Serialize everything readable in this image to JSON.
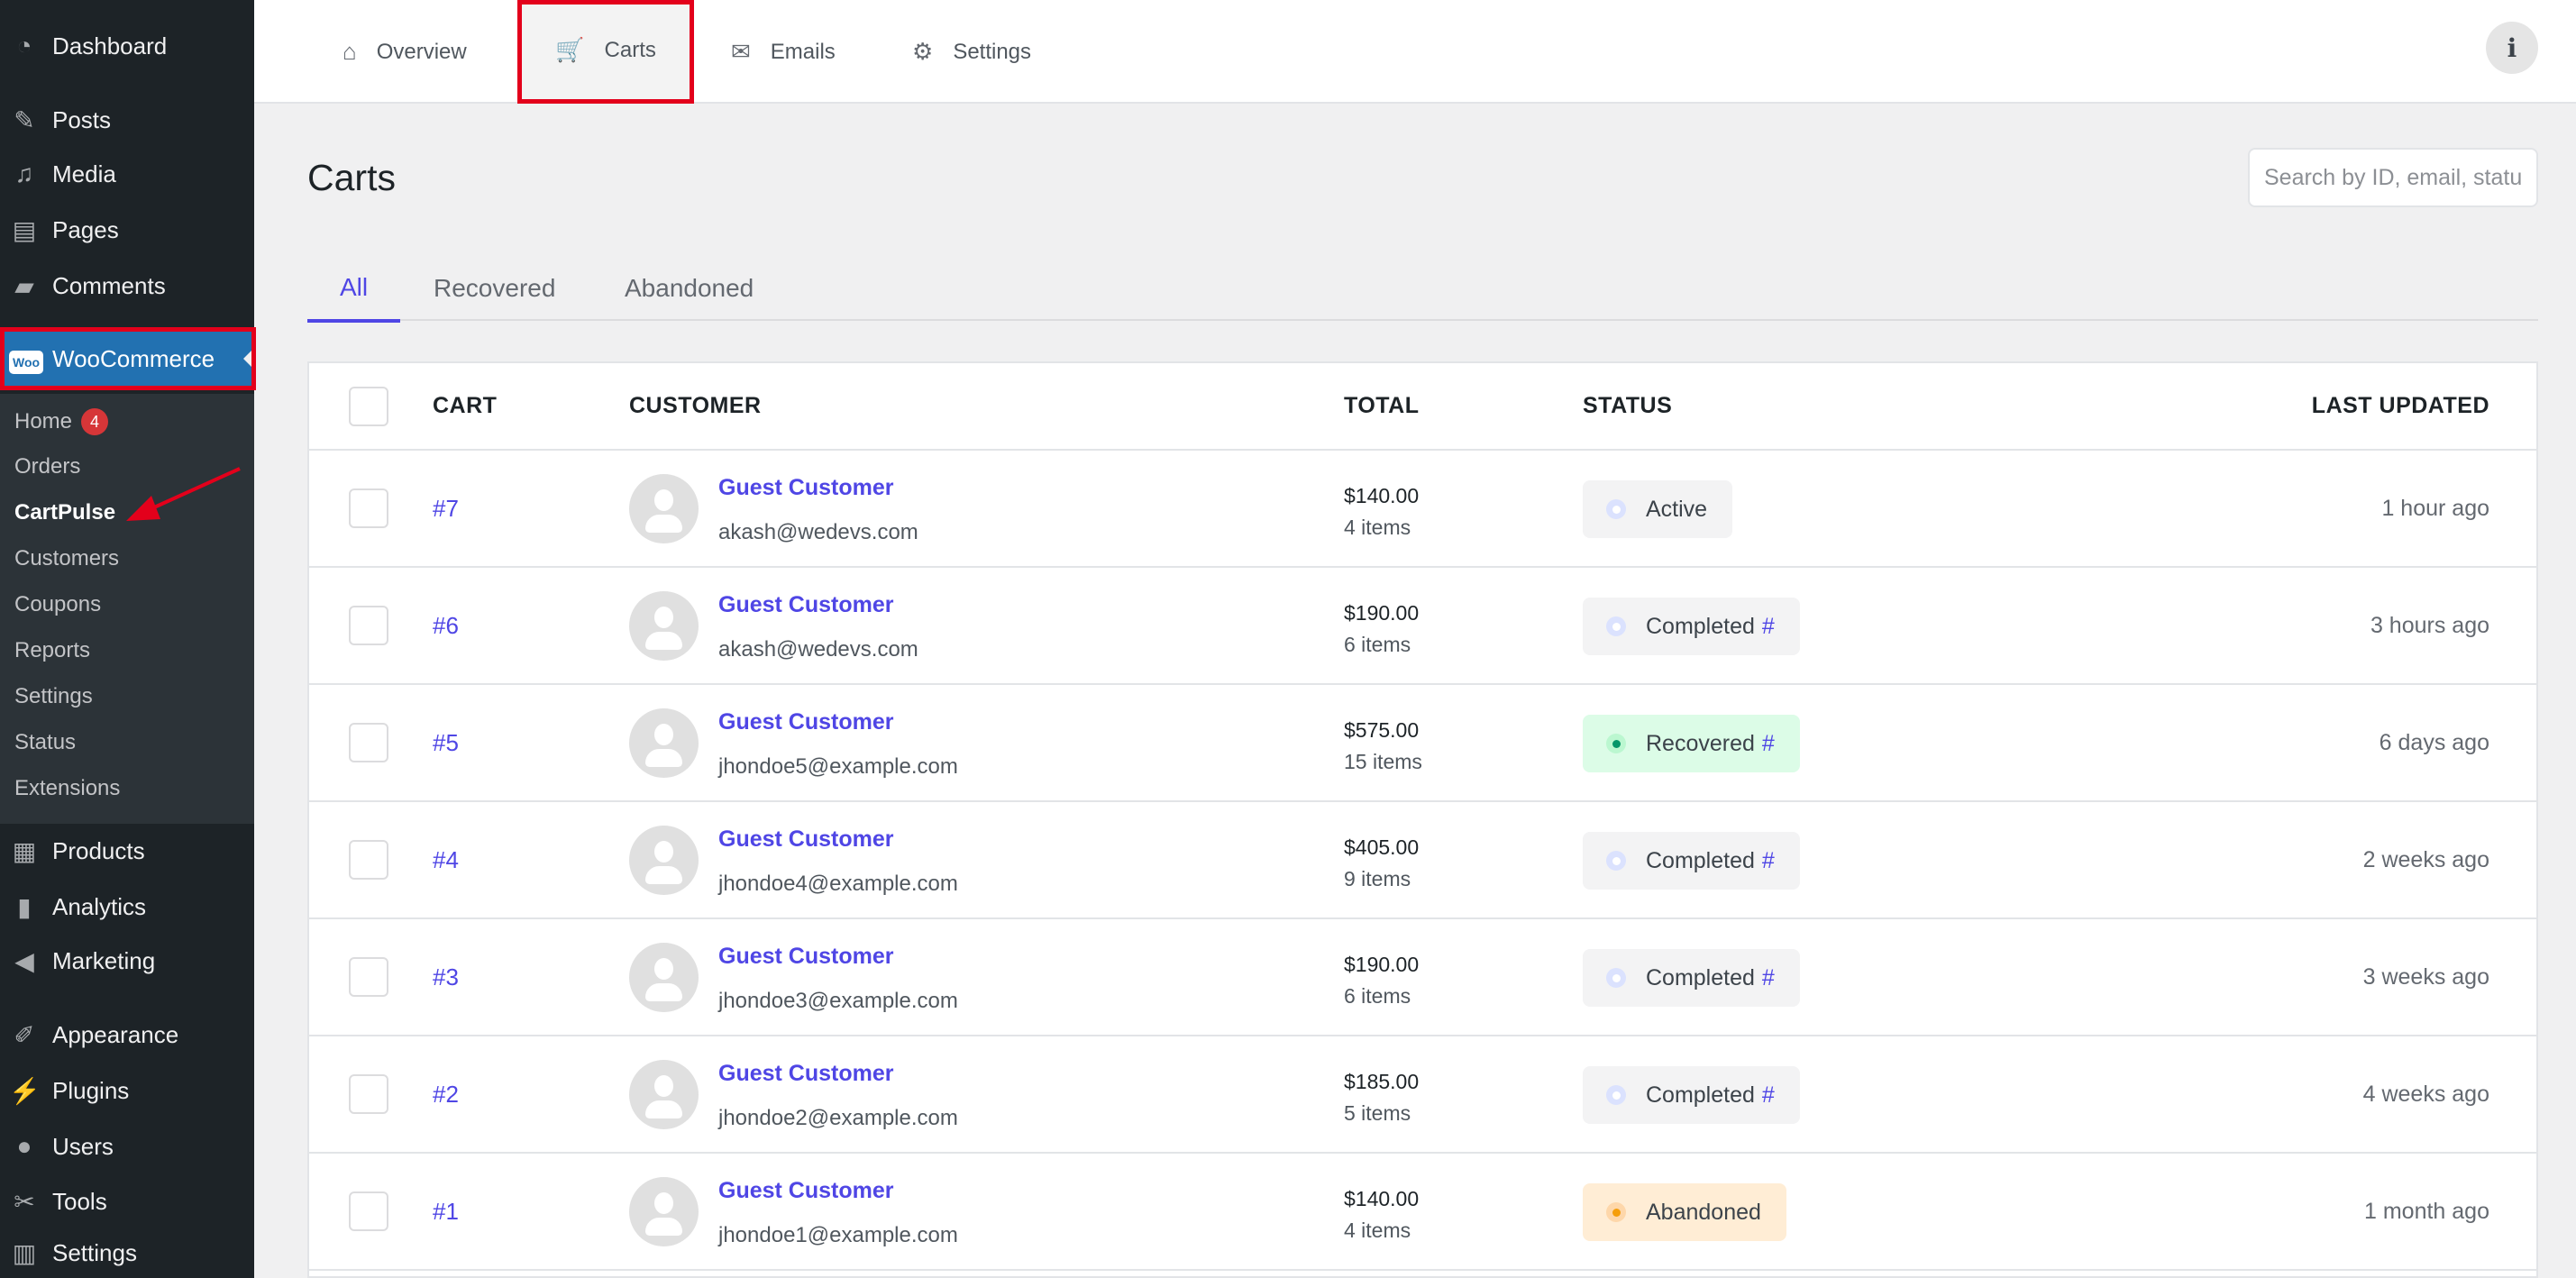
{
  "sidebar": {
    "top": [
      {
        "label": "Dashboard",
        "icon": "dashboard-icon"
      },
      {
        "label": "Posts",
        "icon": "pin-icon"
      },
      {
        "label": "Media",
        "icon": "media-icon"
      },
      {
        "label": "Pages",
        "icon": "pages-icon"
      },
      {
        "label": "Comments",
        "icon": "comment-icon"
      }
    ],
    "woocommerce": {
      "label": "WooCommerce",
      "logo": "Woo"
    },
    "submenu": [
      {
        "label": "Home",
        "badge": "4"
      },
      {
        "label": "Orders"
      },
      {
        "label": "CartPulse",
        "current": true
      },
      {
        "label": "Customers"
      },
      {
        "label": "Coupons"
      },
      {
        "label": "Reports"
      },
      {
        "label": "Settings"
      },
      {
        "label": "Status"
      },
      {
        "label": "Extensions"
      }
    ],
    "bottom": [
      {
        "label": "Products",
        "icon": "archive-icon"
      },
      {
        "label": "Analytics",
        "icon": "bar-chart-icon"
      },
      {
        "label": "Marketing",
        "icon": "megaphone-icon"
      },
      {
        "label": "Appearance",
        "icon": "brush-icon"
      },
      {
        "label": "Plugins",
        "icon": "plugin-icon"
      },
      {
        "label": "Users",
        "icon": "user-icon"
      },
      {
        "label": "Tools",
        "icon": "wrench-icon"
      },
      {
        "label": "Settings",
        "icon": "settings-icon"
      }
    ]
  },
  "topnav": {
    "tabs": [
      {
        "label": "Overview",
        "icon": "home-icon"
      },
      {
        "label": "Carts",
        "icon": "cart-icon",
        "active": true
      },
      {
        "label": "Emails",
        "icon": "email-icon"
      },
      {
        "label": "Settings",
        "icon": "gear-icon"
      }
    ],
    "info": "i"
  },
  "page": {
    "title": "Carts",
    "search_placeholder": "Search by ID, email, status..."
  },
  "filters": [
    {
      "label": "All",
      "active": true
    },
    {
      "label": "Recovered"
    },
    {
      "label": "Abandoned"
    }
  ],
  "table": {
    "columns": [
      "CART",
      "CUSTOMER",
      "TOTAL",
      "STATUS",
      "LAST UPDATED"
    ],
    "rows": [
      {
        "id": "#7",
        "name": "Guest Customer",
        "email": "akash@wedevs.com",
        "total": "$140.00",
        "items": "4 items",
        "status": "Active",
        "link": "",
        "updated": "1 hour ago"
      },
      {
        "id": "#6",
        "name": "Guest Customer",
        "email": "akash@wedevs.com",
        "total": "$190.00",
        "items": "6 items",
        "status": "Completed",
        "link": "#",
        "updated": "3 hours ago"
      },
      {
        "id": "#5",
        "name": "Guest Customer",
        "email": "jhondoe5@example.com",
        "total": "$575.00",
        "items": "15 items",
        "status": "Recovered",
        "link": "#",
        "updated": "6 days ago"
      },
      {
        "id": "#4",
        "name": "Guest Customer",
        "email": "jhondoe4@example.com",
        "total": "$405.00",
        "items": "9 items",
        "status": "Completed",
        "link": "#",
        "updated": "2 weeks ago"
      },
      {
        "id": "#3",
        "name": "Guest Customer",
        "email": "jhondoe3@example.com",
        "total": "$190.00",
        "items": "6 items",
        "status": "Completed",
        "link": "#",
        "updated": "3 weeks ago"
      },
      {
        "id": "#2",
        "name": "Guest Customer",
        "email": "jhondoe2@example.com",
        "total": "$185.00",
        "items": "5 items",
        "status": "Completed",
        "link": "#",
        "updated": "4 weeks ago"
      },
      {
        "id": "#1",
        "name": "Guest Customer",
        "email": "jhondoe1@example.com",
        "total": "$140.00",
        "items": "4 items",
        "status": "Abandoned",
        "link": "",
        "updated": "1 month ago"
      }
    ]
  },
  "status_colors": {
    "Active": {
      "bg": "#f3f3f4",
      "ring": "#dbe2fe",
      "dot": "#ffffff"
    },
    "Completed": {
      "bg": "#f3f3f4",
      "ring": "#dbe2fe",
      "dot": "#ffffff"
    },
    "Recovered": {
      "bg": "#dcfce7",
      "ring": "#bbf7d0",
      "dot": "#059669"
    },
    "Abandoned": {
      "bg": "#ffedd5",
      "ring": "#fed7aa",
      "dot": "#f59e0b"
    }
  },
  "colors": {
    "accent": "#4f46e5",
    "wp_blue": "#2271b1",
    "annotation": "#e3001b"
  }
}
